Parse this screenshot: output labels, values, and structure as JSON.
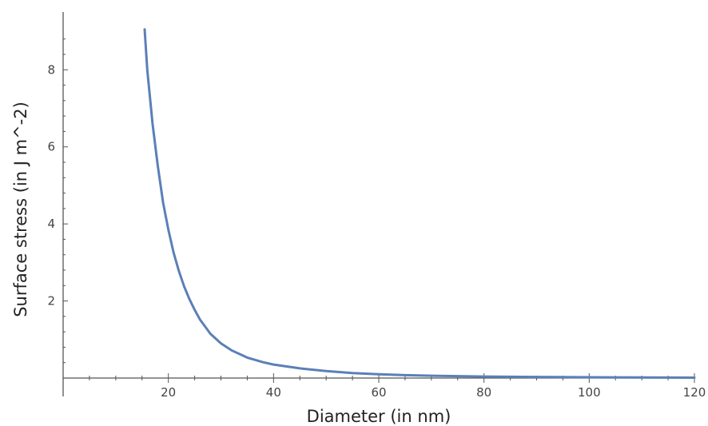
{
  "chart_data": {
    "type": "line",
    "title": "",
    "xlabel": "Diameter (in nm)",
    "ylabel": "Surface stress (in J m^-2)",
    "xlim": [
      0,
      120
    ],
    "ylim": [
      0,
      9.5
    ],
    "x_ticks_major": [
      20,
      40,
      60,
      80,
      100,
      120
    ],
    "x_ticks_minor_step": 5,
    "y_ticks_major": [
      2,
      4,
      6,
      8
    ],
    "y_ticks_minor_step": 0.4,
    "grid": false,
    "legend": "none",
    "colors": {
      "series": "#5b7fb8",
      "axis": "#555555"
    },
    "series": [
      {
        "x": [
          15.5,
          16,
          17,
          18,
          19,
          20,
          21,
          22,
          23,
          24,
          25,
          26,
          28,
          30,
          32,
          35,
          38,
          40,
          45,
          50,
          55,
          60,
          65,
          70,
          80,
          90,
          100,
          110,
          120
        ],
        "y": [
          9.05,
          8.0,
          6.6,
          5.5,
          4.55,
          3.85,
          3.25,
          2.78,
          2.38,
          2.05,
          1.77,
          1.52,
          1.15,
          0.9,
          0.72,
          0.53,
          0.41,
          0.35,
          0.25,
          0.18,
          0.13,
          0.1,
          0.075,
          0.06,
          0.04,
          0.03,
          0.02,
          0.015,
          0.01
        ]
      }
    ]
  }
}
